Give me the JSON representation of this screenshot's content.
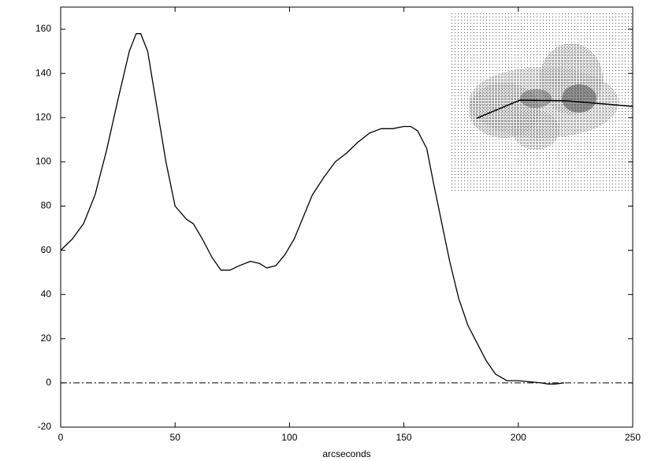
{
  "chart_data": {
    "type": "line",
    "xlabel": "arcseconds",
    "x": [
      0,
      5,
      10,
      15,
      20,
      25,
      30,
      33,
      35,
      38,
      42,
      46,
      50,
      55,
      58,
      62,
      66,
      70,
      74,
      78,
      83,
      87,
      90,
      94,
      98,
      102,
      106,
      110,
      115,
      120,
      125,
      130,
      135,
      140,
      145,
      150,
      153,
      156,
      160,
      163,
      166,
      170,
      174,
      178,
      182,
      186,
      190,
      195,
      200,
      205,
      210,
      213,
      216,
      220
    ],
    "values": [
      60,
      65,
      72,
      85,
      105,
      128,
      150,
      158,
      158,
      150,
      125,
      100,
      80,
      74,
      72,
      65,
      57,
      51,
      51,
      53,
      55,
      54,
      52,
      53,
      58,
      65,
      75,
      85,
      93,
      100,
      104,
      109,
      113,
      115,
      115,
      116,
      116,
      114,
      106,
      90,
      75,
      55,
      38,
      26,
      18,
      10,
      4,
      1,
      1,
      0.5,
      0,
      -0.5,
      -0.5,
      0
    ],
    "color": "#000000",
    "reference_line": 0,
    "xlim": [
      0,
      250
    ],
    "xticks": [
      0,
      50,
      100,
      150,
      200,
      250
    ],
    "ylim": [
      -20,
      170
    ],
    "yticks": [
      -20,
      0,
      20,
      40,
      60,
      80,
      100,
      120,
      140,
      160
    ]
  }
}
